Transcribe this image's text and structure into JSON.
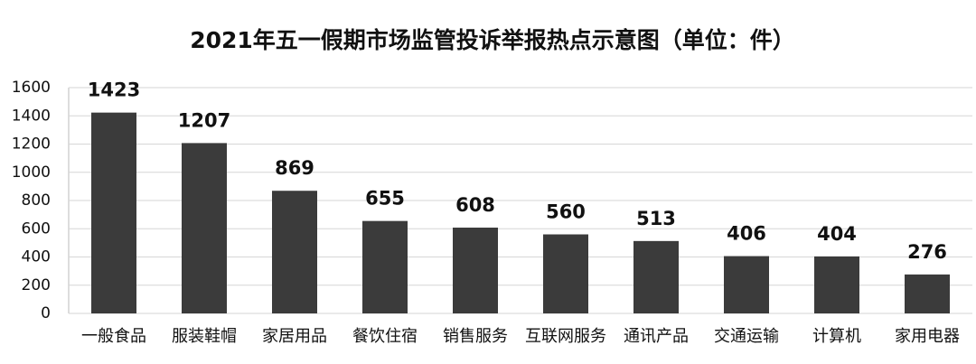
{
  "chart_data": {
    "type": "bar",
    "title": "2021年五一假期市场监管投诉举报热点示意图（单位：件）",
    "categories": [
      "一般食品",
      "服装鞋帽",
      "家居用品",
      "餐饮住宿",
      "销售服务",
      "互联网服务",
      "通讯产品",
      "交通运输",
      "计算机",
      "家用电器"
    ],
    "values": [
      1423,
      1207,
      869,
      655,
      608,
      560,
      513,
      406,
      404,
      276
    ],
    "color": "#3b3b3b",
    "ylim": [
      0,
      1600
    ],
    "yticks": [
      0,
      200,
      400,
      600,
      800,
      1000,
      1200,
      1400,
      1600
    ],
    "grid": true
  }
}
